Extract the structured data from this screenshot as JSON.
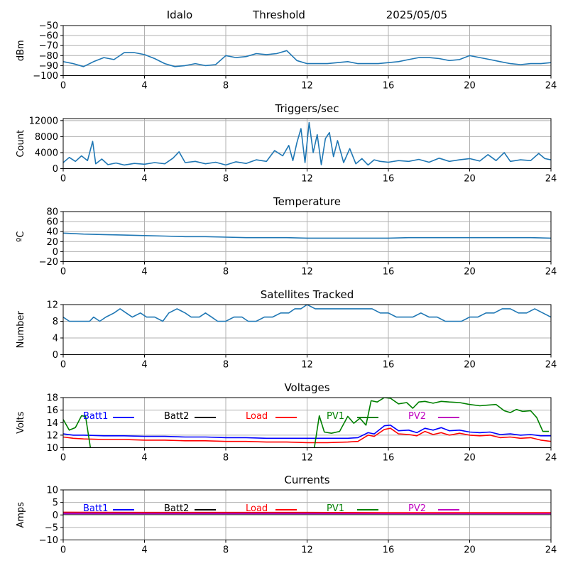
{
  "header": {
    "site": "Idalo",
    "mode": "Threshold",
    "date": "2025/05/05"
  },
  "chart_data": [
    {
      "id": "signal",
      "type": "line",
      "title": "",
      "ylabel": "dBm",
      "ylim": [
        -100,
        -50
      ],
      "yticks": [
        -100,
        -90,
        -80,
        -70,
        -60,
        -50
      ],
      "xlim": [
        0,
        24
      ],
      "xticks": [
        0,
        4,
        8,
        12,
        16,
        20,
        24
      ],
      "grid": true,
      "series": [
        {
          "color": "#1f77b4",
          "x": [
            0,
            0.5,
            1,
            1.5,
            2,
            2.5,
            3,
            3.5,
            4,
            4.5,
            5,
            5.5,
            6,
            6.5,
            7,
            7.5,
            8,
            8.5,
            9,
            9.5,
            10,
            10.5,
            11,
            11.5,
            12,
            12.5,
            13,
            13.5,
            14,
            14.5,
            15,
            15.5,
            16,
            16.5,
            17,
            17.5,
            18,
            18.5,
            19,
            19.5,
            20,
            20.5,
            21,
            21.5,
            22,
            22.5,
            23,
            23.5,
            24
          ],
          "y": [
            -86,
            -88,
            -91,
            -86,
            -82,
            -84,
            -77,
            -77,
            -79,
            -83,
            -88,
            -91,
            -90,
            -88,
            -90,
            -89,
            -80,
            -82,
            -81,
            -78,
            -79,
            -78,
            -75,
            -85,
            -88,
            -88,
            -88,
            -87,
            -86,
            -88,
            -88,
            -88,
            -87,
            -86,
            -84,
            -82,
            -82,
            -83,
            -85,
            -84,
            -80,
            -82,
            -84,
            -86,
            -88,
            -89,
            -88,
            -88,
            -87
          ]
        }
      ]
    },
    {
      "id": "triggers",
      "type": "line",
      "title": "Triggers/sec",
      "ylabel": "Count",
      "ylim": [
        0,
        12500
      ],
      "yticks": [
        0,
        4000,
        8000,
        12000
      ],
      "xlim": [
        0,
        24
      ],
      "xticks": [
        0,
        4,
        8,
        12,
        16,
        20,
        24
      ],
      "grid": true,
      "series": [
        {
          "color": "#1f77b4",
          "x": [
            0,
            0.3,
            0.6,
            0.9,
            1.2,
            1.45,
            1.6,
            1.9,
            2.2,
            2.6,
            3,
            3.5,
            4,
            4.5,
            5,
            5.4,
            5.7,
            6,
            6.5,
            7,
            7.5,
            8,
            8.5,
            9,
            9.5,
            10,
            10.4,
            10.8,
            11.1,
            11.3,
            11.5,
            11.7,
            11.9,
            12.1,
            12.3,
            12.5,
            12.7,
            12.9,
            13.1,
            13.3,
            13.5,
            13.8,
            14.1,
            14.4,
            14.7,
            15,
            15.3,
            15.6,
            16,
            16.5,
            17,
            17.5,
            18,
            18.5,
            19,
            19.5,
            20,
            20.5,
            20.9,
            21.3,
            21.7,
            22,
            22.5,
            23,
            23.4,
            23.7,
            24
          ],
          "y": [
            1500,
            2800,
            1800,
            3200,
            2000,
            6800,
            1200,
            2400,
            1000,
            1400,
            900,
            1300,
            1100,
            1500,
            1200,
            2600,
            4200,
            1500,
            1800,
            1200,
            1600,
            900,
            1700,
            1300,
            2200,
            1800,
            4500,
            3200,
            5800,
            2000,
            6500,
            10000,
            1500,
            11500,
            4000,
            8500,
            1000,
            7500,
            9000,
            3000,
            7000,
            1500,
            5000,
            1200,
            2500,
            900,
            2200,
            1800,
            1600,
            2000,
            1800,
            2300,
            1600,
            2600,
            1800,
            2200,
            2500,
            1900,
            3500,
            2000,
            4000,
            1800,
            2200,
            2000,
            3800,
            2500,
            2200
          ]
        }
      ]
    },
    {
      "id": "temperature",
      "type": "line",
      "title": "Temperature",
      "ylabel": "ºC",
      "ylim": [
        -20,
        80
      ],
      "yticks": [
        -20,
        0,
        20,
        40,
        60,
        80
      ],
      "xlim": [
        0,
        24
      ],
      "xticks": [
        0,
        4,
        8,
        12,
        16,
        20,
        24
      ],
      "grid": true,
      "series": [
        {
          "color": "#1f77b4",
          "x": [
            0,
            1,
            2,
            3,
            4,
            5,
            6,
            7,
            8,
            9,
            10,
            11,
            12,
            13,
            14,
            15,
            16,
            17,
            18,
            19,
            20,
            21,
            22,
            23,
            24
          ],
          "y": [
            37,
            35,
            34,
            33,
            32,
            31,
            30,
            30,
            29,
            28,
            28,
            28,
            27,
            27,
            27,
            27,
            27,
            28,
            28,
            28,
            28,
            28,
            28,
            28,
            27
          ]
        }
      ]
    },
    {
      "id": "satellites",
      "type": "line",
      "title": "Satellites Tracked",
      "ylabel": "Number",
      "ylim": [
        0,
        12
      ],
      "yticks": [
        0,
        4,
        8,
        12
      ],
      "xlim": [
        0,
        24
      ],
      "xticks": [
        0,
        4,
        8,
        12,
        16,
        20,
        24
      ],
      "grid": true,
      "series": [
        {
          "color": "#1f77b4",
          "x": [
            0,
            0.3,
            0.6,
            1,
            1.3,
            1.5,
            1.8,
            2.1,
            2.5,
            2.8,
            3.1,
            3.4,
            3.8,
            4.1,
            4.5,
            4.9,
            5.2,
            5.6,
            6,
            6.3,
            6.7,
            7,
            7.3,
            7.6,
            8,
            8.4,
            8.8,
            9.1,
            9.5,
            9.9,
            10.3,
            10.7,
            11.1,
            11.4,
            11.7,
            12,
            12.4,
            12.8,
            13.2,
            13.6,
            14,
            14.4,
            14.8,
            15.2,
            15.6,
            16,
            16.4,
            16.8,
            17.2,
            17.6,
            18,
            18.4,
            18.8,
            19.2,
            19.6,
            20,
            20.4,
            20.8,
            21.2,
            21.6,
            22,
            22.4,
            22.8,
            23.2,
            23.6,
            24
          ],
          "y": [
            9,
            8,
            8,
            8,
            8,
            9,
            8,
            9,
            10,
            11,
            10,
            9,
            10,
            9,
            9,
            8,
            10,
            11,
            10,
            9,
            9,
            10,
            9,
            8,
            8,
            9,
            9,
            8,
            8,
            9,
            9,
            10,
            10,
            11,
            11,
            12,
            11,
            11,
            11,
            11,
            11,
            11,
            11,
            11,
            10,
            10,
            9,
            9,
            9,
            10,
            9,
            9,
            8,
            8,
            8,
            9,
            9,
            10,
            10,
            11,
            11,
            10,
            10,
            11,
            10,
            9
          ]
        }
      ]
    },
    {
      "id": "voltages",
      "type": "line",
      "title": "Voltages",
      "ylabel": "Volts",
      "ylim": [
        10,
        18
      ],
      "yticks": [
        10,
        12,
        14,
        16,
        18
      ],
      "xlim": [
        0,
        24
      ],
      "xticks": [
        0,
        4,
        8,
        12,
        16,
        20,
        24
      ],
      "grid": true,
      "legend_location": "top",
      "series": [
        {
          "name": "Batt1",
          "color": "#0000ff",
          "x": [
            0,
            0.5,
            1,
            2,
            3,
            4,
            5,
            6,
            7,
            8,
            9,
            10,
            11,
            12,
            13,
            14,
            14.5,
            15,
            15.3,
            15.8,
            16.1,
            16.5,
            17,
            17.4,
            17.8,
            18.2,
            18.6,
            19,
            19.5,
            20,
            20.5,
            21,
            21.5,
            22,
            22.5,
            23,
            23.5,
            24
          ],
          "y": [
            12.2,
            12.0,
            12.0,
            11.9,
            11.9,
            11.8,
            11.8,
            11.7,
            11.7,
            11.6,
            11.6,
            11.5,
            11.5,
            11.5,
            11.5,
            11.5,
            11.6,
            12.4,
            12.2,
            13.5,
            13.6,
            12.7,
            12.8,
            12.4,
            13.1,
            12.8,
            13.2,
            12.7,
            12.8,
            12.5,
            12.4,
            12.5,
            12.1,
            12.2,
            12.0,
            12.1,
            11.9,
            11.9
          ]
        },
        {
          "name": "Batt2",
          "color": "#000000",
          "x": [],
          "y": []
        },
        {
          "name": "Load",
          "color": "#ff0000",
          "x": [
            0,
            0.5,
            1,
            2,
            3,
            4,
            5,
            6,
            7,
            8,
            9,
            10,
            11,
            12,
            13,
            14,
            14.5,
            15,
            15.3,
            15.8,
            16.1,
            16.5,
            17,
            17.4,
            17.8,
            18.2,
            18.6,
            19,
            19.5,
            20,
            20.5,
            21,
            21.5,
            22,
            22.5,
            23,
            23.5,
            24
          ],
          "y": [
            11.7,
            11.5,
            11.4,
            11.3,
            11.3,
            11.2,
            11.2,
            11.1,
            11.1,
            11.0,
            11.0,
            10.9,
            10.9,
            10.8,
            10.8,
            10.9,
            11.0,
            12.0,
            11.8,
            12.9,
            13.1,
            12.2,
            12.1,
            11.9,
            12.6,
            12.1,
            12.4,
            12.0,
            12.3,
            12.0,
            11.9,
            12.0,
            11.6,
            11.7,
            11.5,
            11.6,
            11.2,
            11.0
          ]
        },
        {
          "name": "PV1",
          "color": "#008000",
          "x": [
            0,
            0.3,
            0.6,
            0.9,
            1.1,
            1.35,
            12.35,
            12.6,
            12.85,
            13.2,
            13.6,
            14,
            14.3,
            14.6,
            14.9,
            15.15,
            15.45,
            15.8,
            16.1,
            16.5,
            16.9,
            17.2,
            17.5,
            17.8,
            18.2,
            18.6,
            19,
            19.5,
            20,
            20.5,
            20.9,
            21.3,
            21.7,
            22,
            22.3,
            22.6,
            23,
            23.3,
            23.6,
            23.9
          ],
          "y": [
            14.5,
            12.8,
            13.2,
            15.1,
            15.0,
            9.8,
            9.8,
            15.1,
            12.5,
            12.3,
            12.6,
            15.0,
            13.9,
            14.7,
            13.6,
            17.5,
            17.3,
            18.0,
            17.9,
            17.0,
            17.2,
            16.3,
            17.3,
            17.4,
            17.1,
            17.4,
            17.3,
            17.2,
            16.9,
            16.7,
            16.8,
            16.9,
            15.9,
            15.6,
            16.1,
            15.8,
            15.9,
            14.8,
            12.6,
            12.6
          ]
        },
        {
          "name": "PV2",
          "color": "#bf00bf",
          "x": [],
          "y": []
        }
      ]
    },
    {
      "id": "currents",
      "type": "line",
      "title": "Currents",
      "ylabel": "Amps",
      "ylim": [
        -10,
        10
      ],
      "yticks": [
        -10,
        -5,
        0,
        5,
        10
      ],
      "xlim": [
        0,
        24
      ],
      "xticks": [
        0,
        4,
        8,
        12,
        16,
        20,
        24
      ],
      "grid": true,
      "legend_location": "top",
      "series": [
        {
          "name": "Batt1",
          "color": "#0000ff",
          "x": [
            0,
            4,
            8,
            12,
            16,
            20,
            24
          ],
          "y": [
            0.6,
            0.6,
            0.6,
            0.6,
            0.5,
            0.5,
            0.5
          ]
        },
        {
          "name": "Batt2",
          "color": "#000000",
          "x": [],
          "y": []
        },
        {
          "name": "Load",
          "color": "#ff0000",
          "x": [
            0,
            4,
            8,
            12,
            16,
            20,
            24
          ],
          "y": [
            1.1,
            1.0,
            1.0,
            1.0,
            0.9,
            0.9,
            0.9
          ]
        },
        {
          "name": "PV1",
          "color": "#008000",
          "x": [
            0,
            4,
            8,
            12,
            16,
            20,
            24
          ],
          "y": [
            0.2,
            0.2,
            0.2,
            0.2,
            0.2,
            0.2,
            0.2
          ]
        },
        {
          "name": "PV2",
          "color": "#bf00bf",
          "x": [
            0,
            4,
            8,
            12,
            16,
            20,
            24
          ],
          "y": [
            0.4,
            0.4,
            0.4,
            0.4,
            0.4,
            0.4,
            0.4
          ]
        }
      ]
    }
  ]
}
